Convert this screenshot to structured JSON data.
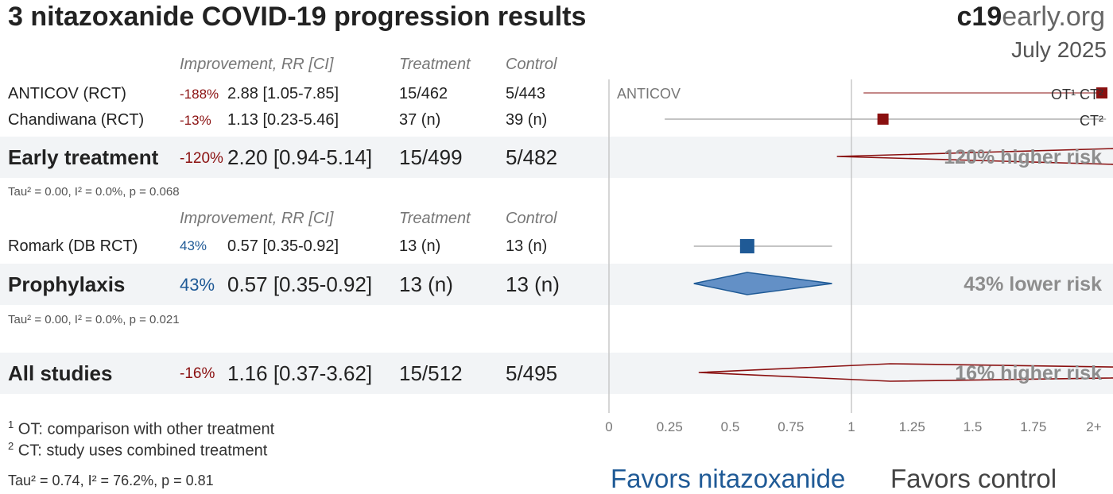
{
  "title": "3 nitazoxanide COVID-19 progression results",
  "brand_bold": "c19",
  "brand_rest": "early.org",
  "date": "July 2025",
  "headers": {
    "improvement": "Improvement, RR [CI]",
    "treatment": "Treatment",
    "control": "Control"
  },
  "het": {
    "early": "Tau² = 0.00, I² = 0.0%, p = 0.068",
    "prophylaxis": "Tau² = 0.00, I² = 0.0%, p = 0.021",
    "all": "Tau² = 0.74, I² = 76.2%, p = 0.81"
  },
  "footnotes": {
    "n1": "1",
    "t1": "OT: comparison with other treatment",
    "n2": "2",
    "t2": "CT: study uses combined treatment"
  },
  "favors": {
    "left": "Favors nitazoxanide",
    "right": "Favors control"
  },
  "plot_label": "ANTICOV",
  "colors": {
    "harm": "#8a1010",
    "benefit": "#1f5a96",
    "benefit_fill": "#6390c6",
    "band": "#f2f4f6"
  },
  "chart_data": {
    "type": "forest",
    "xlim": [
      0,
      2
    ],
    "ticks": [
      "0",
      "0.25",
      "0.5",
      "0.75",
      "1",
      "1.25",
      "1.5",
      "1.75",
      "2+"
    ],
    "tick_values": [
      0,
      0.25,
      0.5,
      0.75,
      1,
      1.25,
      1.5,
      1.75,
      2
    ],
    "studies": [
      {
        "name": "ANTICOV (RCT)",
        "improvement": "-188%",
        "rr_text": "2.88 [1.05-7.85]",
        "rr": 2.88,
        "lo": 1.05,
        "hi": 7.85,
        "treatment": "15/462",
        "control": "5/443",
        "tags": "OT¹ CT²",
        "group": "early"
      },
      {
        "name": "Chandiwana (RCT)",
        "improvement": "-13%",
        "rr_text": "1.13 [0.23-5.46]",
        "rr": 1.13,
        "lo": 0.23,
        "hi": 5.46,
        "treatment": "37 (n)",
        "control": "39 (n)",
        "tags": "CT²",
        "group": "early"
      },
      {
        "name": "Romark (DB RCT)",
        "improvement": "43%",
        "rr_text": "0.57 [0.35-0.92]",
        "rr": 0.57,
        "lo": 0.35,
        "hi": 0.92,
        "treatment": "13 (n)",
        "control": "13 (n)",
        "tags": "",
        "group": "prophylaxis"
      }
    ],
    "summaries": [
      {
        "name": "Early treatment",
        "improvement": "-120%",
        "rr_text": "2.20 [0.94-5.14]",
        "rr": 2.2,
        "lo": 0.94,
        "hi": 5.14,
        "treatment": "15/499",
        "control": "5/482",
        "label": "120% higher risk"
      },
      {
        "name": "Prophylaxis",
        "improvement": "43%",
        "rr_text": "0.57 [0.35-0.92]",
        "rr": 0.57,
        "lo": 0.35,
        "hi": 0.92,
        "treatment": "13 (n)",
        "control": "13 (n)",
        "label": "43% lower risk"
      },
      {
        "name": "All studies",
        "improvement": "-16%",
        "rr_text": "1.16 [0.37-3.62]",
        "rr": 1.16,
        "lo": 0.37,
        "hi": 3.62,
        "treatment": "15/512",
        "control": "5/495",
        "label": "16% higher risk"
      }
    ]
  }
}
